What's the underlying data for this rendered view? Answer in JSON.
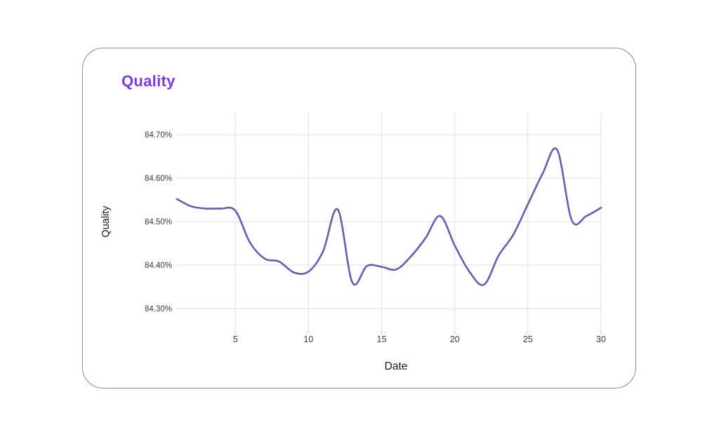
{
  "page": {
    "background": "#ffffff"
  },
  "card": {
    "title": "Quality",
    "title_color": "#7c3aed",
    "border_color": "#8c8c8c"
  },
  "chart_data": {
    "type": "line",
    "title": "Quality",
    "xlabel": "Date",
    "ylabel": "Quality",
    "unit": "%",
    "x": [
      1,
      2,
      3,
      4,
      5,
      6,
      7,
      8,
      9,
      10,
      11,
      12,
      13,
      14,
      15,
      16,
      17,
      18,
      19,
      20,
      21,
      22,
      23,
      24,
      25,
      26,
      27,
      28,
      29,
      30
    ],
    "values": [
      84.552,
      84.535,
      84.53,
      84.53,
      84.525,
      84.452,
      84.415,
      84.408,
      84.383,
      84.385,
      84.432,
      84.528,
      84.36,
      84.398,
      84.396,
      84.39,
      84.42,
      84.462,
      84.513,
      84.445,
      84.385,
      84.355,
      84.422,
      84.47,
      84.54,
      84.61,
      84.665,
      84.503,
      84.513,
      84.532
    ],
    "x_ticks": [
      5,
      10,
      15,
      20,
      25,
      30
    ],
    "x_tick_labels": [
      "5",
      "10",
      "15",
      "20",
      "25",
      "30"
    ],
    "y_ticks": [
      84.7,
      84.6,
      84.5,
      84.4,
      84.3
    ],
    "y_tick_labels": [
      "84.70%",
      "84.60%",
      "84.50%",
      "84.40%",
      "84.30%"
    ],
    "xlim": [
      0.96,
      30
    ],
    "ylim": [
      84.25,
      84.75
    ],
    "grid": true,
    "legend": false,
    "line_color": "#6d58b6",
    "grid_color": "#e0e0e0",
    "tick_color": "#c9c9c9",
    "tick_label_color": "#3a3a3a",
    "axis_title_color": "#1a1a1a"
  }
}
